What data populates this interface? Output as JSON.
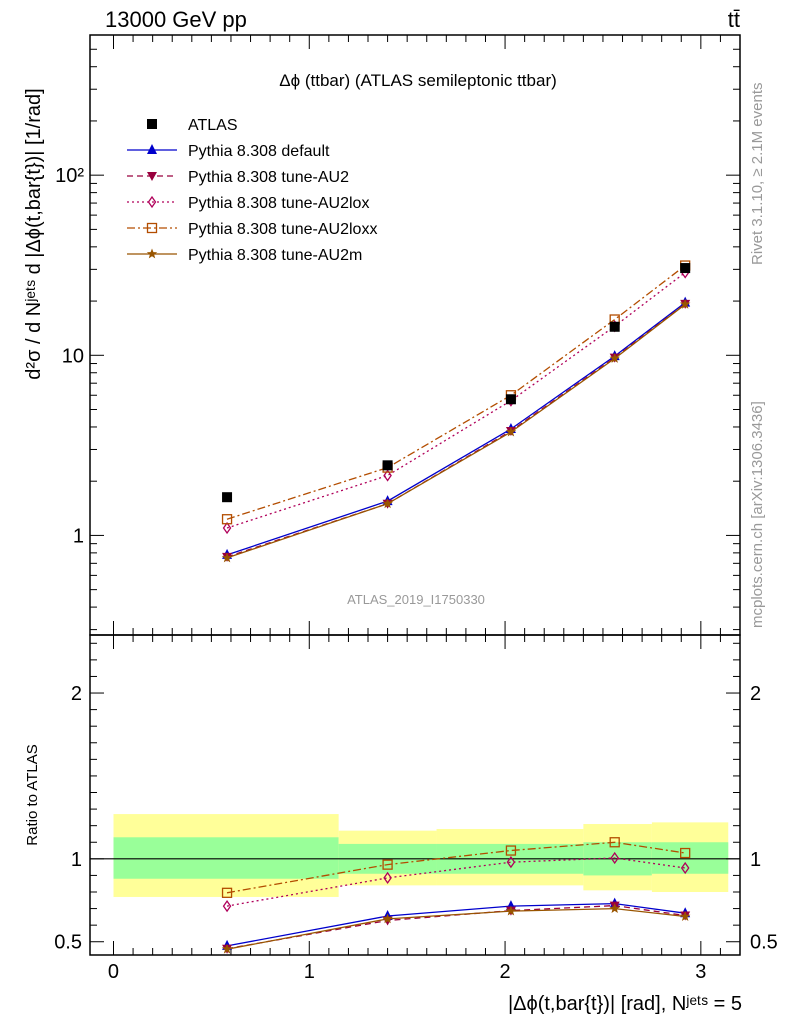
{
  "header": {
    "energy": "13000 GeV pp",
    "process": "tt̄",
    "rivet": "Rivet 3.1.10, ≥ 2.1M events",
    "mcplots": "mcplots.cern.ch [arXiv:1306.3436]",
    "analysis": "ATLAS_2019_I1750330"
  },
  "chart_data": [
    {
      "type": "line",
      "title": "Δϕ (ttbar) (ATLAS semileptonic ttbar)",
      "ylabel": "d²σ / d Nʲᵉᵗˢ d |Δϕ(t,bar{t})| [1/rad]",
      "yscale": "log",
      "ylim": [
        0.28,
        600
      ],
      "xlim": [
        -0.12,
        3.2
      ],
      "yticks": [
        1,
        10,
        100
      ],
      "ytick_labels": [
        "1",
        "10",
        "10²"
      ],
      "legend_position": "top-left",
      "x": [
        0.58,
        1.4,
        2.03,
        2.56,
        2.92
      ],
      "data": {
        "name": "ATLAS",
        "values": [
          1.63,
          2.45,
          5.7,
          14.4,
          30.5
        ]
      },
      "series": [
        {
          "name": "Pythia 8.308 default",
          "values": [
            0.78,
            1.55,
            3.9,
            9.9,
            19.6
          ],
          "color": "#0000cc",
          "style": "solid",
          "marker": "triangle-up"
        },
        {
          "name": "Pythia 8.308 tune-AU2",
          "values": [
            0.76,
            1.5,
            3.8,
            9.7,
            19.3
          ],
          "color": "#99003d",
          "style": "dashed",
          "marker": "triangle-down"
        },
        {
          "name": "Pythia 8.308 tune-AU2lox",
          "values": [
            1.1,
            2.15,
            5.6,
            14.5,
            28.8
          ],
          "color": "#b0005a",
          "style": "dotted",
          "marker": "diamond-open"
        },
        {
          "name": "Pythia 8.308 tune-AU2loxx",
          "values": [
            1.23,
            2.38,
            6.0,
            15.8,
            31.5
          ],
          "color": "#b34d00",
          "style": "dashdot",
          "marker": "square-open"
        },
        {
          "name": "Pythia 8.308 tune-AU2m",
          "values": [
            0.75,
            1.5,
            3.75,
            9.6,
            19.2
          ],
          "color": "#995500",
          "style": "solid",
          "marker": "star"
        }
      ]
    },
    {
      "type": "line",
      "ylabel": "Ratio to ATLAS",
      "xlabel": "|Δϕ(t,bar{t})| [rad], Nʲᵉᵗˢ = 5",
      "ylim": [
        0.42,
        2.35
      ],
      "xlim": [
        -0.12,
        3.2
      ],
      "yticks": [
        0.5,
        1,
        2
      ],
      "ytick_labels": [
        "0.5",
        "1",
        "2"
      ],
      "xticks": [
        0,
        1,
        2,
        3
      ],
      "xtick_labels": [
        "0",
        "1",
        "2",
        "3"
      ],
      "bands": {
        "edges": [
          0.0,
          1.15,
          1.65,
          2.4,
          2.75,
          3.14
        ],
        "inner": [
          [
            0.88,
            1.13
          ],
          [
            0.91,
            1.09
          ],
          [
            0.91,
            1.09
          ],
          [
            0.9,
            1.1
          ],
          [
            0.91,
            1.1
          ]
        ],
        "outer": [
          [
            0.77,
            1.27
          ],
          [
            0.84,
            1.17
          ],
          [
            0.84,
            1.18
          ],
          [
            0.81,
            1.21
          ],
          [
            0.8,
            1.22
          ]
        ],
        "inner_color": "#99ff99",
        "outer_color": "#ffff99"
      },
      "x": [
        0.58,
        1.4,
        2.03,
        2.56,
        2.92
      ],
      "series": [
        {
          "name": "Pythia 8.308 default",
          "values": [
            0.475,
            0.655,
            0.715,
            0.73,
            0.672
          ]
        },
        {
          "name": "Pythia 8.308 tune-AU2",
          "values": [
            0.458,
            0.628,
            0.688,
            0.718,
            0.658
          ]
        },
        {
          "name": "Pythia 8.308 tune-AU2lox",
          "values": [
            0.715,
            0.885,
            0.98,
            1.005,
            0.945
          ]
        },
        {
          "name": "Pythia 8.308 tune-AU2loxx",
          "values": [
            0.795,
            0.965,
            1.05,
            1.1,
            1.035
          ]
        },
        {
          "name": "Pythia 8.308 tune-AU2m",
          "values": [
            0.455,
            0.638,
            0.685,
            0.7,
            0.652
          ]
        }
      ]
    }
  ]
}
